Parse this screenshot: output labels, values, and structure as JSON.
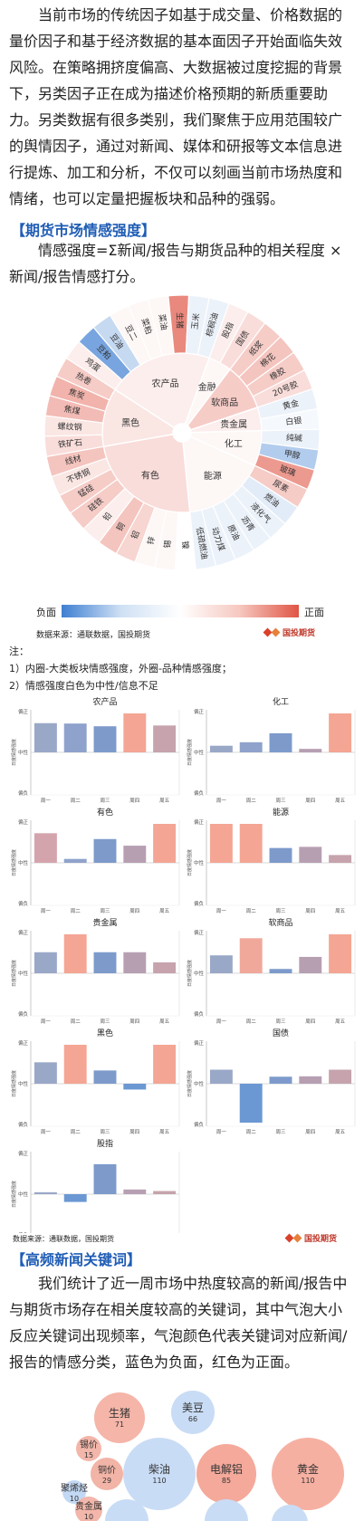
{
  "intro": {
    "p1": "当前市场的传统因子如基于成交量、价格数据的量价因子和基于经济数据的基本面因子开始面临失效风险。在策略拥挤度偏高、大数据被过度挖掘的背景下，另类因子正在成为描述价格预期的新质重要助力。",
    "p2": "另类数据有很多类别，我们聚焦于应用范围较广的舆情因子，通过对新闻、媒体和研报等文本信息进行提炼、加工和分析，不仅可以刻画当前市场热度和情绪，也可以定量把握板块和品种的强弱。"
  },
  "section1": {
    "title": "【期货市场情感强度】",
    "desc": "情感强度=Σ新闻/报告与期货品种的相关程度 ×新闻/报告情感打分。"
  },
  "sunburst": {
    "inner": [
      {
        "label": "黑色",
        "value": 0.15
      },
      {
        "label": "农产品",
        "value": 0.1
      },
      {
        "label": "金融",
        "value": 0.05
      },
      {
        "label": "软商品",
        "value": 0.3
      },
      {
        "label": "贵金属",
        "value": 0.1
      },
      {
        "label": "化工",
        "value": 0.05
      },
      {
        "label": "能源",
        "value": 0.05
      },
      {
        "label": "有色",
        "value": 0.2
      }
    ],
    "outer": [
      {
        "label": "铁矿石",
        "value": 0.2
      },
      {
        "label": "螺纹钢",
        "value": 0.15
      },
      {
        "label": "焦煤",
        "value": 0.4
      },
      {
        "label": "焦炭",
        "value": 0.45
      },
      {
        "label": "热卷",
        "value": 0.3
      },
      {
        "label": "鸡蛋",
        "value": 0.1
      },
      {
        "label": "豆粕",
        "value": -0.7
      },
      {
        "label": "豆油",
        "value": -0.3
      },
      {
        "label": "豆二",
        "value": 0.05
      },
      {
        "label": "菜粕",
        "value": 0.05
      },
      {
        "label": "菜油",
        "value": 0.05
      },
      {
        "label": "生猪",
        "value": 0.7
      },
      {
        "label": "玉米",
        "value": -0.1
      },
      {
        "label": "棕榈油",
        "value": -0.1
      },
      {
        "label": "股指",
        "value": 0.1
      },
      {
        "label": "国债",
        "value": 0.2
      },
      {
        "label": "纸浆",
        "value": 0.3
      },
      {
        "label": "棉花",
        "value": 0.35
      },
      {
        "label": "橡胶",
        "value": 0.3
      },
      {
        "label": "20号胶",
        "value": 0.2
      },
      {
        "label": "黄金",
        "value": -0.1
      },
      {
        "label": "白银",
        "value": -0.05
      },
      {
        "label": "纯碱",
        "value": -0.1
      },
      {
        "label": "甲醇",
        "value": -0.4
      },
      {
        "label": "玻璃",
        "value": 0.6
      },
      {
        "label": "尿素",
        "value": 0.3
      },
      {
        "label": "燃油",
        "value": -0.15
      },
      {
        "label": "液化气",
        "value": -0.1
      },
      {
        "label": "沥青",
        "value": -0.1
      },
      {
        "label": "原油",
        "value": -0.1
      },
      {
        "label": "动力煤",
        "value": -0.1
      },
      {
        "label": "低硫燃油",
        "value": -0.1
      },
      {
        "label": "镍",
        "value": 0.0
      },
      {
        "label": "锡",
        "value": 0.05
      },
      {
        "label": "锌",
        "value": 0.05
      },
      {
        "label": "铝",
        "value": 0.25
      },
      {
        "label": "铜",
        "value": 0.35
      },
      {
        "label": "铅",
        "value": 0.1
      },
      {
        "label": "硅铁",
        "value": 0.3
      },
      {
        "label": "锰硅",
        "value": 0.3
      },
      {
        "label": "不锈钢",
        "value": 0.15
      },
      {
        "label": "线材",
        "value": 0.35
      }
    ],
    "legend_neg": "负面",
    "legend_pos": "正面",
    "source": "数据来源：通联数据，国投期货"
  },
  "logo_text": "国投期货",
  "notes": {
    "head": "注：",
    "n1": "1）内圈-大类板块情感强度，外圈-品种情感强度；",
    "n2": "2）情感强度白色为中性/信息不足"
  },
  "bar_panels": {
    "y_top": "偏正",
    "y_mid": "中性",
    "y_bot": "偏负",
    "y_label": "日度情感强度",
    "days": [
      "周一",
      "周二",
      "周三",
      "周四",
      "周五"
    ],
    "source": "数据来源：通联数据，国投期货"
  },
  "chart_data": [
    {
      "type": "bar",
      "title": "农产品",
      "categories": [
        "周一",
        "周二",
        "周三",
        "周四",
        "周五"
      ],
      "values": [
        0.75,
        0.74,
        0.67,
        1.0,
        0.69
      ]
    },
    {
      "type": "bar",
      "title": "化工",
      "categories": [
        "周一",
        "周二",
        "周三",
        "周四",
        "周五"
      ],
      "values": [
        0.17,
        0.26,
        0.49,
        0.09,
        1.0
      ]
    },
    {
      "type": "bar",
      "title": "有色",
      "categories": [
        "周一",
        "周二",
        "周三",
        "周四",
        "周五"
      ],
      "values": [
        0.76,
        0.1,
        0.61,
        0.44,
        1.0
      ]
    },
    {
      "type": "bar",
      "title": "能源",
      "categories": [
        "周一",
        "周二",
        "周三",
        "周四",
        "周五"
      ],
      "values": [
        1.0,
        1.0,
        0.38,
        0.41,
        0.2
      ]
    },
    {
      "type": "bar",
      "title": "贵金属",
      "categories": [
        "周一",
        "周二",
        "周三",
        "周四",
        "周五"
      ],
      "values": [
        0.54,
        1.0,
        0.54,
        0.54,
        0.28
      ]
    },
    {
      "type": "bar",
      "title": "软商品",
      "categories": [
        "周一",
        "周二",
        "周三",
        "周四",
        "周五"
      ],
      "values": [
        0.46,
        0.9,
        0.11,
        0.42,
        1.0
      ]
    },
    {
      "type": "bar",
      "title": "黑色",
      "categories": [
        "周一",
        "周二",
        "周三",
        "周四",
        "周五"
      ],
      "values": [
        0.55,
        1.0,
        0.34,
        -0.15,
        1.0
      ]
    },
    {
      "type": "bar",
      "title": "国债",
      "categories": [
        "周一",
        "周二",
        "周三",
        "周四",
        "周五"
      ],
      "values": [
        0.36,
        -1.0,
        0.18,
        0.19,
        0.36
      ]
    },
    {
      "type": "bar",
      "title": "股指",
      "categories": [
        "周一",
        "周二",
        "周三",
        "周四",
        "周五"
      ],
      "values": [
        0.05,
        -0.2,
        0.77,
        0.12,
        0.08
      ]
    }
  ],
  "section2": {
    "title": "【高频新闻关键词】",
    "desc": "我们统计了近一周市场中热度较高的新闻/报告中与期货市场存在相关度较高的关键词，其中气泡大小反应关键词出现频率，气泡颜色代表关键词对应新闻/报告的情感分类，蓝色为负面，红色为正面。"
  },
  "bubbles": [
    {
      "label": "生猪",
      "count": "71",
      "sentiment": "positive"
    },
    {
      "label": "美豆",
      "count": "66",
      "sentiment": "negative"
    },
    {
      "label": "锡价",
      "count": "15",
      "sentiment": "positive"
    },
    {
      "label": "铜价",
      "count": "29",
      "sentiment": "positive"
    },
    {
      "label": "柴油",
      "count": "110",
      "sentiment": "negative"
    },
    {
      "label": "电解铝",
      "count": "85",
      "sentiment": "positive"
    },
    {
      "label": "黄金",
      "count": "110",
      "sentiment": "positive"
    },
    {
      "label": "聚烯烃",
      "count": "10",
      "sentiment": "negative"
    },
    {
      "label": "贵金属",
      "count": "10",
      "sentiment": "positive"
    },
    {
      "label": "",
      "count": "",
      "sentiment": "negative"
    },
    {
      "label": "",
      "count": "",
      "sentiment": "negative"
    },
    {
      "label": "",
      "count": "",
      "sentiment": "negative"
    }
  ],
  "colors": {
    "positive": "#e05545",
    "negative": "#3e7fd1",
    "title": "#1f5db5"
  }
}
